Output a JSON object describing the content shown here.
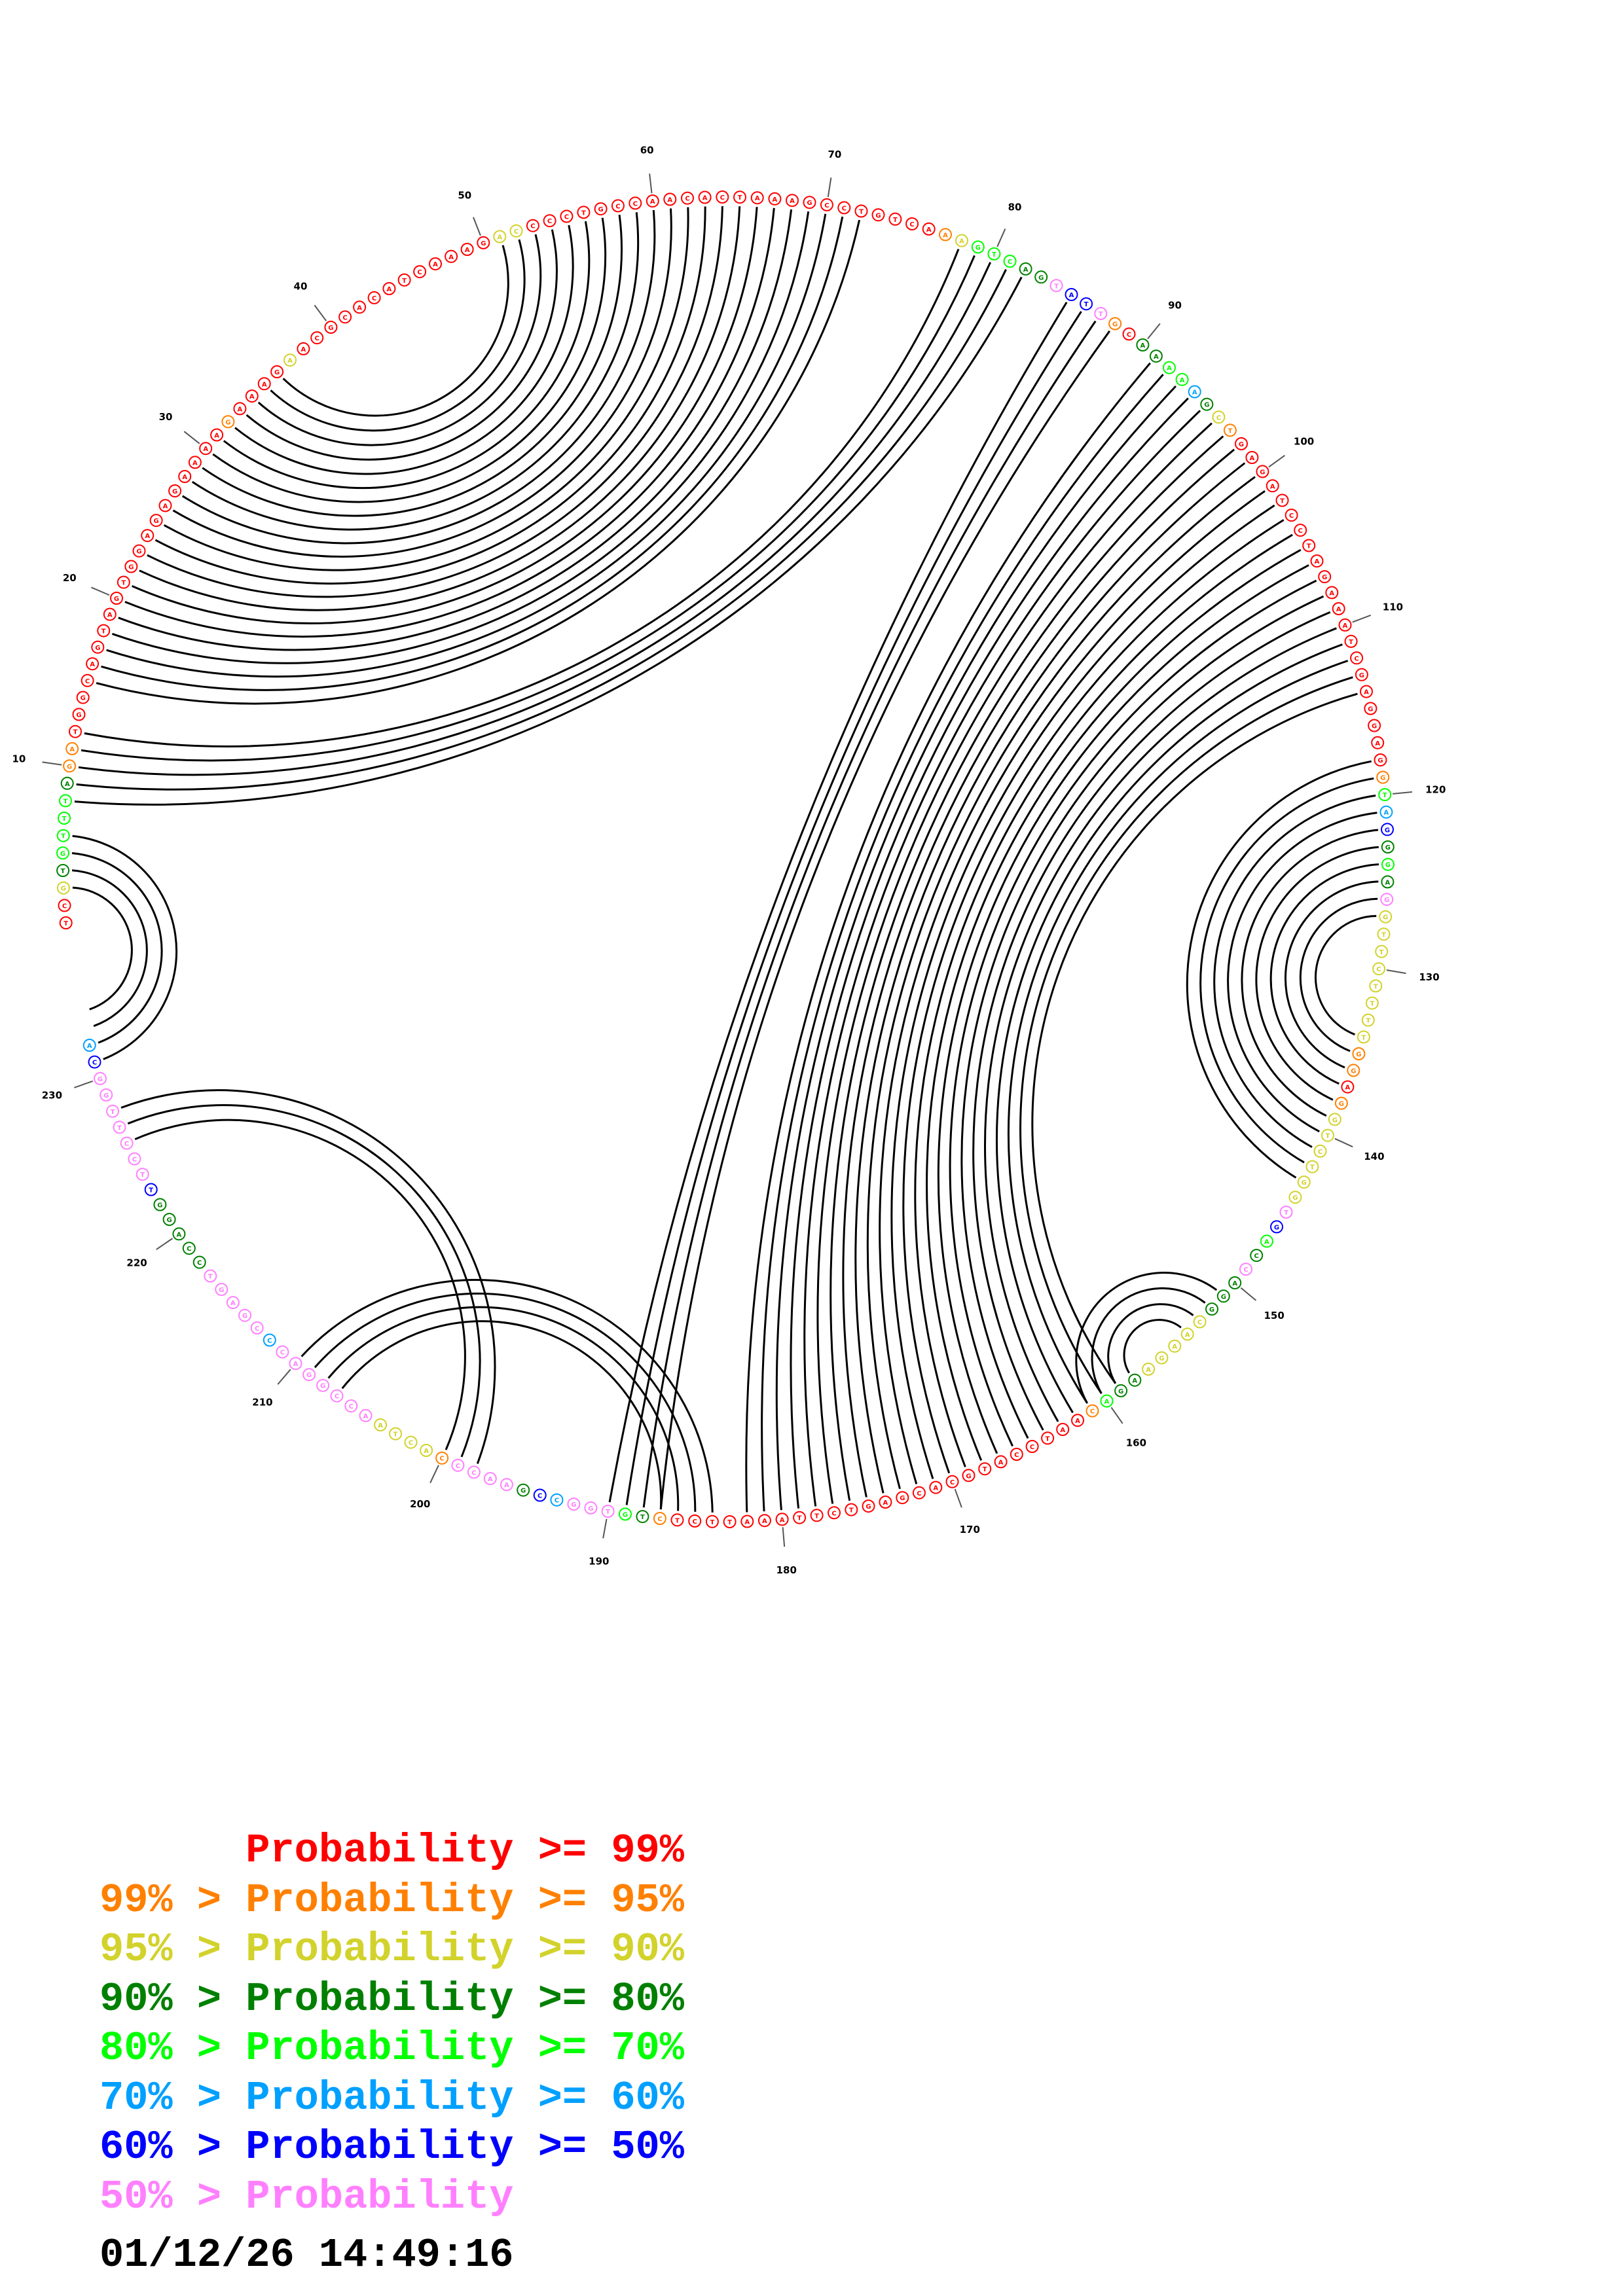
{
  "sequence": "TCGTGTTTAGATGGCAGTAGTGGAGAGAAAAGAAAGAACGCACATCAAAGACCCCTGCCAACACTAAAGCCTGTCAAAGTCAGTATTGCAAAAAGCTGAGATCCTAGAAATCGAGGAGGTAGGGAGGTTCTTTTGGAGGTCTGGTGACCAGGCAAGAAGACAATCCATGCACGAGTCTTAAATTCTCTGTGGCCGAACCCACTAACCGGACCCGAGTCCAGGTTCCTTGGCA",
  "probability_tiers": [
    0,
    0,
    2,
    3,
    4,
    4,
    4,
    4,
    3,
    1,
    1,
    0,
    0,
    0,
    0,
    0,
    0,
    0,
    0,
    0,
    0,
    0,
    0,
    0,
    0,
    0,
    0,
    0,
    0,
    0,
    0,
    1,
    0,
    0,
    0,
    0,
    2,
    0,
    0,
    0,
    0,
    0,
    0,
    0,
    0,
    0,
    0,
    0,
    0,
    0,
    2,
    2,
    0,
    0,
    0,
    0,
    0,
    0,
    0,
    0,
    0,
    0,
    0,
    0,
    0,
    0,
    0,
    0,
    0,
    0,
    0,
    0,
    0,
    0,
    0,
    0,
    1,
    2,
    4,
    4,
    4,
    3,
    3,
    7,
    6,
    6,
    7,
    1,
    0,
    3,
    3,
    4,
    4,
    5,
    3,
    2,
    1,
    0,
    0,
    0,
    0,
    0,
    0,
    0,
    0,
    0,
    0,
    0,
    0,
    0,
    0,
    0,
    0,
    0,
    0,
    0,
    0,
    0,
    1,
    4,
    5,
    6,
    3,
    4,
    3,
    7,
    2,
    2,
    2,
    2,
    2,
    2,
    2,
    2,
    1,
    1,
    0,
    1,
    2,
    2,
    2,
    2,
    2,
    2,
    7,
    6,
    4,
    3,
    7,
    3,
    3,
    3,
    2,
    2,
    2,
    2,
    2,
    3,
    3,
    4,
    1,
    0,
    0,
    0,
    0,
    0,
    0,
    0,
    0,
    0,
    0,
    0,
    0,
    0,
    0,
    0,
    0,
    0,
    0,
    0,
    0,
    0,
    0,
    0,
    0,
    0,
    1,
    3,
    4,
    7,
    7,
    7,
    5,
    6,
    3,
    7,
    7,
    7,
    7,
    1,
    2,
    2,
    2,
    2,
    7,
    7,
    7,
    7,
    7,
    7,
    7,
    5,
    7,
    7,
    7,
    7,
    7,
    3,
    3,
    3,
    3,
    3,
    6,
    7,
    7,
    7,
    7,
    7,
    7,
    7,
    6,
    5,
    7,
    7,
    7,
    7,
    7,
    7,
    7,
    7,
    1
  ],
  "pairs": [
    [
      3,
      234
    ],
    [
      4,
      233
    ],
    [
      5,
      232
    ],
    [
      6,
      231
    ],
    [
      8,
      82
    ],
    [
      9,
      81
    ],
    [
      10,
      80
    ],
    [
      11,
      79
    ],
    [
      12,
      78
    ],
    [
      15,
      72
    ],
    [
      16,
      71
    ],
    [
      17,
      70
    ],
    [
      18,
      69
    ],
    [
      19,
      68
    ],
    [
      20,
      67
    ],
    [
      21,
      66
    ],
    [
      22,
      65
    ],
    [
      23,
      64
    ],
    [
      24,
      63
    ],
    [
      25,
      62
    ],
    [
      26,
      61
    ],
    [
      27,
      60
    ],
    [
      28,
      59
    ],
    [
      29,
      58
    ],
    [
      30,
      57
    ],
    [
      31,
      56
    ],
    [
      32,
      55
    ],
    [
      33,
      54
    ],
    [
      34,
      53
    ],
    [
      35,
      52
    ],
    [
      36,
      51
    ],
    [
      85,
      190
    ],
    [
      86,
      189
    ],
    [
      87,
      188
    ],
    [
      88,
      187
    ],
    [
      91,
      182
    ],
    [
      92,
      181
    ],
    [
      93,
      180
    ],
    [
      94,
      179
    ],
    [
      95,
      178
    ],
    [
      96,
      177
    ],
    [
      97,
      176
    ],
    [
      98,
      175
    ],
    [
      99,
      174
    ],
    [
      100,
      173
    ],
    [
      101,
      172
    ],
    [
      102,
      171
    ],
    [
      103,
      170
    ],
    [
      104,
      169
    ],
    [
      105,
      168
    ],
    [
      106,
      167
    ],
    [
      107,
      166
    ],
    [
      108,
      165
    ],
    [
      109,
      164
    ],
    [
      110,
      163
    ],
    [
      111,
      162
    ],
    [
      112,
      161
    ],
    [
      113,
      160
    ],
    [
      114,
      159
    ],
    [
      118,
      143
    ],
    [
      119,
      142
    ],
    [
      120,
      141
    ],
    [
      121,
      140
    ],
    [
      122,
      139
    ],
    [
      123,
      138
    ],
    [
      124,
      137
    ],
    [
      125,
      136
    ],
    [
      126,
      135
    ],
    [
      127,
      134
    ],
    [
      151,
      161
    ],
    [
      152,
      160
    ],
    [
      153,
      159
    ],
    [
      154,
      158
    ],
    [
      184,
      210
    ],
    [
      185,
      209
    ],
    [
      186,
      208
    ],
    [
      187,
      207
    ],
    [
      198,
      228
    ],
    [
      199,
      227
    ],
    [
      200,
      226
    ]
  ],
  "position_labels": [
    "10",
    "20",
    "30",
    "40",
    "50",
    "60",
    "70",
    "80",
    "90",
    "100",
    "110",
    "120",
    "130",
    "140",
    "150",
    "160",
    "170",
    "180",
    "190",
    "200",
    "210",
    "220",
    "230"
  ],
  "tier_colors": [
    "#ff0000",
    "#ff8000",
    "#d2d22c",
    "#008000",
    "#00ff00",
    "#00a0ff",
    "#0000ff",
    "#ff80ff"
  ],
  "legend": [
    {
      "text": "      Probability >= 99%",
      "color": "#ff0000"
    },
    {
      "text": "99% > Probability >= 95%",
      "color": "#ff8000"
    },
    {
      "text": "95% > Probability >= 90%",
      "color": "#d2d22c"
    },
    {
      "text": "90% > Probability >= 80%",
      "color": "#008000"
    },
    {
      "text": "80% > Probability >= 70%",
      "color": "#00ff00"
    },
    {
      "text": "70% > Probability >= 60%",
      "color": "#00a0ff"
    },
    {
      "text": "60% > Probability >= 50%",
      "color": "#0000ff"
    },
    {
      "text": "50% > Probability",
      "color": "#ff80ff"
    }
  ],
  "timestamp": "01/12/26 14:49:16"
}
